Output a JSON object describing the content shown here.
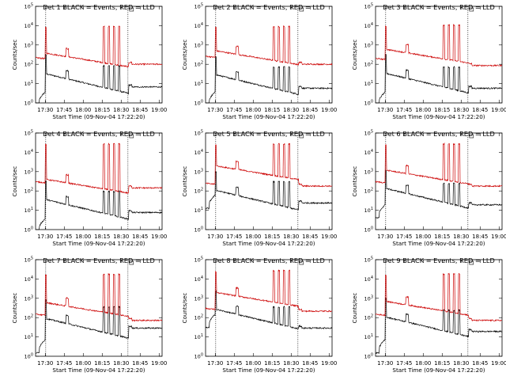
{
  "chart_data": [
    {
      "type": "line",
      "title": "Det 1 BLACK = Events, RED = LLD",
      "xlabel": "Start Time (09-Nov-04 17:22:20)",
      "ylabel": "Counts/sec",
      "x_ticks": [
        "17:30",
        "17:45",
        "18:00",
        "18:15",
        "18:30",
        "18:45",
        "19:00"
      ],
      "y_ticks": [
        "10^0",
        "10^1",
        "10^2",
        "10^3",
        "10^4",
        "10^5"
      ],
      "y_scale": "log",
      "ylim": [
        1,
        100000
      ],
      "series": [
        {
          "name": "Events",
          "color": "#000000",
          "kind": "events",
          "base": 7,
          "early": 1.5,
          "flare": 36
        },
        {
          "name": "LLD",
          "color": "#cc0000",
          "kind": "lld",
          "base": 140,
          "early": 220,
          "peak": 10000,
          "flare": 380
        }
      ]
    },
    {
      "type": "line",
      "title": "Det 2 BLACK = Events, RED = LLD",
      "xlabel": "Start Time (09-Nov-04 17:22:20)",
      "ylabel": "Counts/sec",
      "x_ticks": [
        "17:30",
        "17:45",
        "18:00",
        "18:15",
        "18:30",
        "18:45",
        "19:00"
      ],
      "y_ticks": [
        "10^0",
        "10^1",
        "10^2",
        "10^3",
        "10^4",
        "10^5"
      ],
      "y_scale": "log",
      "ylim": [
        1,
        100000
      ],
      "series": [
        {
          "name": "Events",
          "color": "#000000",
          "kind": "events",
          "base": 6,
          "early": 1.5,
          "flare": 32
        },
        {
          "name": "LLD",
          "color": "#cc0000",
          "kind": "lld",
          "base": 140,
          "early": 260,
          "peak": 10000,
          "flare": 500
        }
      ]
    },
    {
      "type": "line",
      "title": "Det 3 BLACK = Events, RED = LLD",
      "xlabel": "Start Time (09-Nov-04 17:22:20)",
      "ylabel": "Counts/sec",
      "x_ticks": [
        "17:30",
        "17:45",
        "18:00",
        "18:15",
        "18:30",
        "18:45",
        "19:00"
      ],
      "y_ticks": [
        "10^0",
        "10^1",
        "10^2",
        "10^3",
        "10^4",
        "10^5"
      ],
      "y_scale": "log",
      "ylim": [
        1,
        100000
      ],
      "series": [
        {
          "name": "Events",
          "color": "#000000",
          "kind": "events",
          "base": 6,
          "early": 1.5,
          "flare": 38
        },
        {
          "name": "LLD",
          "color": "#cc0000",
          "kind": "lld",
          "base": 120,
          "early": 200,
          "peak": 12000,
          "flare": 600
        }
      ]
    },
    {
      "type": "line",
      "title": "Det 4 BLACK = Events, RED = LLD",
      "xlabel": "Start Time (09-Nov-04 17:22:20)",
      "ylabel": "Counts/sec",
      "x_ticks": [
        "17:30",
        "17:45",
        "18:00",
        "18:15",
        "18:30",
        "18:45",
        "19:00"
      ],
      "y_ticks": [
        "10^0",
        "10^1",
        "10^2",
        "10^3",
        "10^4",
        "10^5"
      ],
      "y_scale": "log",
      "ylim": [
        1,
        100000
      ],
      "series": [
        {
          "name": "Events",
          "color": "#000000",
          "kind": "events",
          "base": 8,
          "early": 1.5,
          "flare": 40
        },
        {
          "name": "LLD",
          "color": "#cc0000",
          "kind": "lld",
          "base": 200,
          "early": 300,
          "peak": 30000,
          "flare": 400
        }
      ]
    },
    {
      "type": "line",
      "title": "Det 5 BLACK = Events, RED = LLD",
      "xlabel": "Start Time (09-Nov-04 17:22:20)",
      "ylabel": "Counts/sec",
      "x_ticks": [
        "17:30",
        "17:45",
        "18:00",
        "18:15",
        "18:30",
        "18:45",
        "19:00"
      ],
      "y_ticks": [
        "10^0",
        "10^1",
        "10^2",
        "10^3",
        "10^4",
        "10^5"
      ],
      "y_scale": "log",
      "ylim": [
        1,
        100000
      ],
      "series": [
        {
          "name": "Events",
          "color": "#000000",
          "kind": "events",
          "base": 25,
          "early": 25,
          "flare": 120
        },
        {
          "name": "LLD",
          "color": "#cc0000",
          "kind": "lld",
          "base": 250,
          "early": 250,
          "peak": 30000,
          "flare": 2000
        }
      ]
    },
    {
      "type": "line",
      "title": "Det 6 BLACK = Events, RED = LLD",
      "xlabel": "Start Time (09-Nov-04 17:22:20)",
      "ylabel": "Counts/sec",
      "x_ticks": [
        "17:30",
        "17:45",
        "18:00",
        "18:15",
        "18:30",
        "18:45",
        "19:00"
      ],
      "y_ticks": [
        "10^0",
        "10^1",
        "10^2",
        "10^3",
        "10^4",
        "10^5"
      ],
      "y_scale": "log",
      "ylim": [
        1,
        100000
      ],
      "series": [
        {
          "name": "Events",
          "color": "#000000",
          "kind": "events",
          "base": 20,
          "early": 8,
          "flare": 150
        },
        {
          "name": "LLD",
          "color": "#cc0000",
          "kind": "lld",
          "base": 250,
          "early": 300,
          "peak": 30000,
          "flare": 1200
        }
      ]
    },
    {
      "type": "line",
      "title": "Det 7 BLACK = Events, RED = LLD",
      "xlabel": "Start Time (09-Nov-04 17:22:20)",
      "ylabel": "Counts/sec",
      "x_ticks": [
        "17:30",
        "17:45",
        "18:00",
        "18:15",
        "18:30",
        "18:45",
        "19:00"
      ],
      "y_ticks": [
        "10^0",
        "10^1",
        "10^2",
        "10^3",
        "10^4",
        "10^5"
      ],
      "y_scale": "log",
      "ylim": [
        1,
        100000
      ],
      "series": [
        {
          "name": "Events",
          "color": "#000000",
          "kind": "events",
          "base": 30,
          "early": 3,
          "flare": 100
        },
        {
          "name": "LLD",
          "color": "#cc0000",
          "kind": "lld",
          "base": 100,
          "early": 150,
          "peak": 20000,
          "flare": 600
        }
      ]
    },
    {
      "type": "line",
      "title": "Det 8 BLACK = Events, RED = LLD",
      "xlabel": "Start Time (09-Nov-04 17:22:20)",
      "ylabel": "Counts/sec",
      "x_ticks": [
        "17:30",
        "17:45",
        "18:00",
        "18:15",
        "18:30",
        "18:45",
        "19:00"
      ],
      "y_ticks": [
        "10^0",
        "10^1",
        "10^2",
        "10^3",
        "10^4",
        "10^5"
      ],
      "y_scale": "log",
      "ylim": [
        1,
        100000
      ],
      "series": [
        {
          "name": "Events",
          "color": "#000000",
          "kind": "events",
          "base": 30,
          "early": 60,
          "flare": 300
        },
        {
          "name": "LLD",
          "color": "#cc0000",
          "kind": "lld",
          "base": 300,
          "early": 300,
          "peak": 30000,
          "flare": 2000
        }
      ]
    },
    {
      "type": "line",
      "title": "Det 9 BLACK = Events, RED = LLD",
      "xlabel": "Start Time (09-Nov-04 17:22:20)",
      "ylabel": "Counts/sec",
      "x_ticks": [
        "17:30",
        "17:45",
        "18:00",
        "18:15",
        "18:30",
        "18:45",
        "19:00"
      ],
      "y_ticks": [
        "10^0",
        "10^1",
        "10^2",
        "10^3",
        "10^4",
        "10^5"
      ],
      "y_scale": "log",
      "ylim": [
        1,
        100000
      ],
      "series": [
        {
          "name": "Events",
          "color": "#000000",
          "kind": "events",
          "base": 20,
          "early": 3,
          "flare": 120
        },
        {
          "name": "LLD",
          "color": "#cc0000",
          "kind": "lld",
          "base": 100,
          "early": 150,
          "peak": 20000,
          "flare": 700
        }
      ]
    }
  ]
}
